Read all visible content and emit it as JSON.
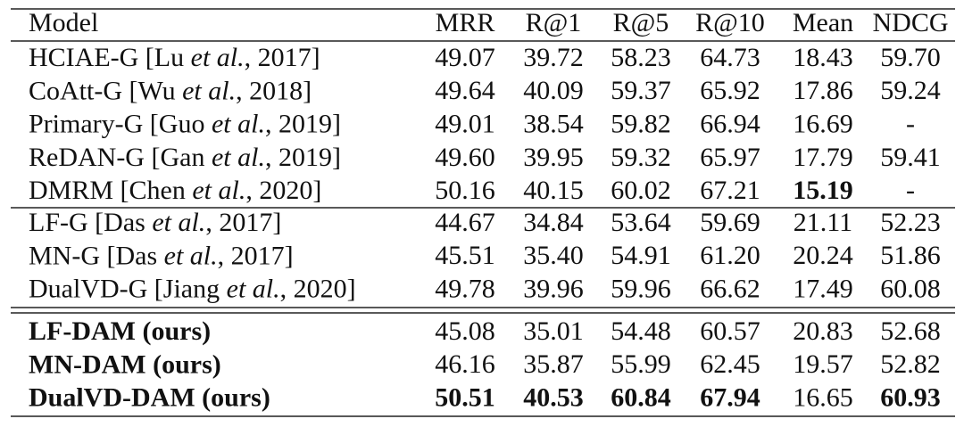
{
  "table": {
    "columns": [
      "Model",
      "MRR",
      "R@1",
      "R@5",
      "R@10",
      "Mean",
      "NDCG"
    ],
    "groups": [
      [
        {
          "model": [
            "HCIAE-G [Lu ",
            "et al.",
            ", 2017]"
          ],
          "values": [
            "49.07",
            "39.72",
            "58.23",
            "64.73",
            "18.43",
            "59.70"
          ]
        },
        {
          "model": [
            "CoAtt-G [Wu ",
            "et al.",
            ", 2018]"
          ],
          "values": [
            "49.64",
            "40.09",
            "59.37",
            "65.92",
            "17.86",
            "59.24"
          ]
        },
        {
          "model": [
            "Primary-G [Guo ",
            "et al.",
            ", 2019]"
          ],
          "values": [
            "49.01",
            "38.54",
            "59.82",
            "66.94",
            "16.69",
            "-"
          ]
        },
        {
          "model": [
            "ReDAN-G [Gan ",
            "et al.",
            ", 2019]"
          ],
          "values": [
            "49.60",
            "39.95",
            "59.32",
            "65.97",
            "17.79",
            "59.41"
          ]
        },
        {
          "model": [
            "DMRM [Chen ",
            "et al.",
            ", 2020]"
          ],
          "values": [
            "50.16",
            "40.15",
            "60.02",
            "67.21",
            "15.19",
            "-"
          ],
          "bold_values": [
            4
          ]
        }
      ],
      [
        {
          "model": [
            "LF-G [Das ",
            "et al.",
            ", 2017]"
          ],
          "values": [
            "44.67",
            "34.84",
            "53.64",
            "59.69",
            "21.11",
            "52.23"
          ]
        },
        {
          "model": [
            "MN-G [Das ",
            "et al.",
            ", 2017]"
          ],
          "values": [
            "45.51",
            "35.40",
            "54.91",
            "61.20",
            "20.24",
            "51.86"
          ]
        },
        {
          "model": [
            "DualVD-G [Jiang ",
            "et al.",
            ", 2020]"
          ],
          "values": [
            "49.78",
            "39.96",
            "59.96",
            "66.62",
            "17.49",
            "60.08"
          ]
        }
      ],
      [
        {
          "model": [
            "LF-DAM (ours)"
          ],
          "bold_model": true,
          "values": [
            "45.08",
            "35.01",
            "54.48",
            "60.57",
            "20.83",
            "52.68"
          ]
        },
        {
          "model": [
            "MN-DAM (ours)"
          ],
          "bold_model": true,
          "values": [
            "46.16",
            "35.87",
            "55.99",
            "62.45",
            "19.57",
            "52.82"
          ]
        },
        {
          "model": [
            "DualVD-DAM (ours)"
          ],
          "bold_model": true,
          "values": [
            "50.51",
            "40.53",
            "60.84",
            "67.94",
            "16.65",
            "60.93"
          ],
          "bold_values": [
            0,
            1,
            2,
            3,
            5
          ]
        }
      ]
    ]
  }
}
